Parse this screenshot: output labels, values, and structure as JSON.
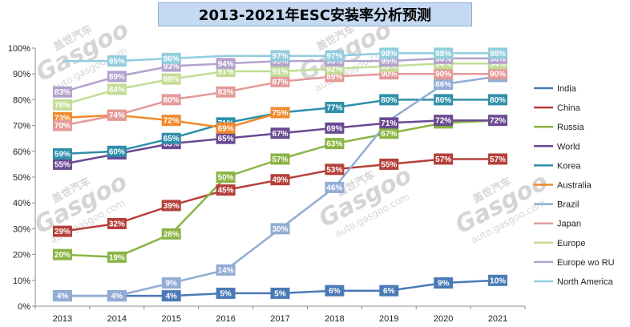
{
  "chart_data": {
    "type": "line",
    "title": "2013-2021年ESC安装率分析预测",
    "categories": [
      "2013",
      "2014",
      "2015",
      "2016",
      "2017",
      "2018",
      "2019",
      "2020",
      "2021"
    ],
    "ylim": [
      0,
      100
    ],
    "yticks": [
      "0%",
      "10%",
      "20%",
      "30%",
      "40%",
      "50%",
      "60%",
      "70%",
      "80%",
      "90%",
      "100%"
    ],
    "legend_position": "right",
    "grid": false,
    "series": [
      {
        "name": "India",
        "color": "#4a7ab5",
        "values": [
          4,
          4,
          4,
          5,
          5,
          6,
          6,
          9,
          10
        ],
        "show_label": [
          true,
          true,
          true,
          true,
          true,
          true,
          true,
          true,
          true
        ]
      },
      {
        "name": "China",
        "color": "#b5403a",
        "values": [
          29,
          32,
          39,
          45,
          49,
          53,
          55,
          57,
          57
        ],
        "show_label": [
          true,
          true,
          true,
          true,
          true,
          true,
          true,
          true,
          true
        ]
      },
      {
        "name": "Russia",
        "color": "#8ab443",
        "values": [
          20,
          19,
          28,
          50,
          57,
          63,
          67,
          71,
          72
        ],
        "show_label": [
          true,
          true,
          true,
          true,
          true,
          true,
          true,
          true,
          false
        ]
      },
      {
        "name": "World",
        "color": "#6a4a92",
        "values": [
          55,
          59,
          63,
          65,
          67,
          69,
          71,
          72,
          72
        ],
        "show_label": [
          true,
          true,
          true,
          true,
          true,
          true,
          true,
          true,
          true
        ]
      },
      {
        "name": "Korea",
        "color": "#2f8fa8",
        "values": [
          59,
          60,
          65,
          71,
          75,
          77,
          80,
          80,
          80
        ],
        "show_label": [
          true,
          true,
          true,
          true,
          true,
          true,
          true,
          true,
          true
        ]
      },
      {
        "name": "Australia",
        "color": "#f08a2c",
        "values": [
          73,
          74,
          72,
          69,
          75,
          null,
          null,
          null,
          null
        ],
        "show_label": [
          true,
          true,
          true,
          true,
          true,
          false,
          false,
          false,
          false
        ]
      },
      {
        "name": "Brazil",
        "color": "#92acd4",
        "values": [
          4,
          4,
          9,
          14,
          30,
          46,
          72,
          86,
          89
        ],
        "show_label": [
          true,
          true,
          true,
          true,
          true,
          true,
          false,
          true,
          true
        ]
      },
      {
        "name": "Japan",
        "color": "#e39a98",
        "values": [
          70,
          74,
          80,
          83,
          87,
          89,
          90,
          90,
          90
        ],
        "show_label": [
          true,
          true,
          true,
          true,
          true,
          true,
          true,
          true,
          true
        ]
      },
      {
        "name": "Europe",
        "color": "#c3dc96",
        "values": [
          78,
          84,
          88,
          91,
          91,
          92,
          93,
          94,
          94
        ],
        "show_label": [
          true,
          true,
          true,
          true,
          true,
          true,
          true,
          true,
          true
        ]
      },
      {
        "name": "Europe wo RU",
        "color": "#b3a2cc",
        "values": [
          83,
          89,
          93,
          94,
          95,
          95,
          95,
          96,
          96
        ],
        "show_label": [
          true,
          true,
          true,
          true,
          true,
          true,
          true,
          true,
          true
        ]
      },
      {
        "name": "North America",
        "color": "#92cddd",
        "values": [
          95,
          95,
          96,
          97,
          97,
          97,
          98,
          98,
          98
        ],
        "show_label": [
          false,
          true,
          true,
          false,
          true,
          true,
          true,
          true,
          true
        ]
      }
    ]
  },
  "watermarks": [
    {
      "brand": "Gasgoo",
      "cn": "盖世汽车",
      "url": "auto.gasgoo.com"
    },
    {
      "brand": "Gasgoo",
      "cn": "盖世汽车",
      "url": "auto.gasgoo.com"
    },
    {
      "brand": "Gasgoo",
      "cn": "盖世汽车",
      "url": "auto.gasgoo.com"
    },
    {
      "brand": "Gasgoo",
      "cn": "盖世汽车",
      "url": "auto.gasgoo.com"
    },
    {
      "brand": "Gasgoo",
      "cn": "盖世汽车",
      "url": "auto.gasgoo.com"
    }
  ]
}
